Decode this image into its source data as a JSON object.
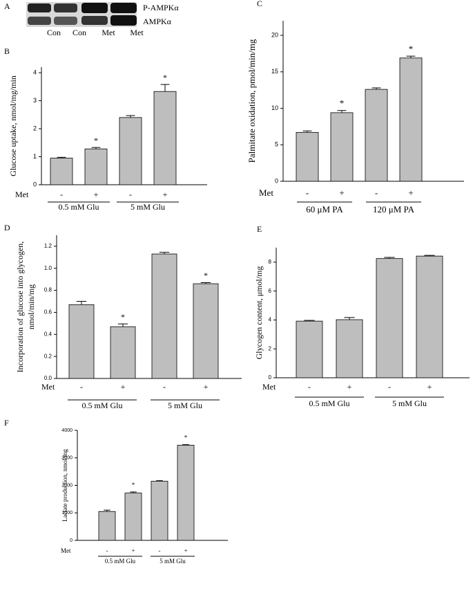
{
  "blot": {
    "panel": "A",
    "rows": [
      "P-AMPKα",
      "AMPKα"
    ],
    "lanes": [
      "Con",
      "Con",
      "Met",
      "Met"
    ]
  },
  "chart_data": [
    {
      "type": "bar",
      "panel": "B",
      "ylabel": "Glucose uptake, nmol/mg/min",
      "row_label": "Met",
      "categories": [
        "-",
        "+",
        "-",
        "+"
      ],
      "groups": [
        "0.5 mM Glu",
        "5 mM Glu"
      ],
      "values": [
        0.95,
        1.28,
        2.4,
        3.33
      ],
      "errors": [
        0.03,
        0.05,
        0.07,
        0.25
      ],
      "annotations": [
        {
          "at": 1,
          "text": "*"
        },
        {
          "at": 3,
          "text": "*"
        }
      ],
      "color": "#bebebe",
      "ylim": [
        0,
        4.2
      ],
      "yticks": [
        0,
        1,
        2,
        3,
        4
      ]
    },
    {
      "type": "bar",
      "panel": "C",
      "ylabel": "Palmitate oxidation, pmol/min/mg",
      "row_label": "Met",
      "categories": [
        "-",
        "+",
        "-",
        "+"
      ],
      "groups": [
        "60 μM PA",
        "120 μM PA"
      ],
      "values": [
        6.7,
        9.4,
        12.6,
        16.9
      ],
      "errors": [
        0.2,
        0.3,
        0.2,
        0.25
      ],
      "annotations": [
        {
          "at": 1,
          "text": "*"
        },
        {
          "at": 3,
          "text": "*"
        }
      ],
      "color": "#bebebe",
      "ylim": [
        0,
        22
      ],
      "yticks": [
        0,
        5,
        10,
        15,
        20
      ]
    },
    {
      "type": "bar",
      "panel": "D",
      "ylabel": [
        "Incorporation of glucose into glycogen,",
        "nmol/min/mg"
      ],
      "row_label": "Met",
      "categories": [
        "-",
        "+",
        "-",
        "+"
      ],
      "groups": [
        "0.5 mM Glu",
        "5 mM Glu"
      ],
      "values": [
        0.67,
        0.47,
        1.13,
        0.86
      ],
      "errors": [
        0.03,
        0.025,
        0.015,
        0.01
      ],
      "annotations": [
        {
          "at": 1,
          "text": "*"
        },
        {
          "at": 3,
          "text": "*"
        }
      ],
      "color": "#bebebe",
      "ylim": [
        0,
        1.3
      ],
      "yticks": [
        {
          "value": 0,
          "label": "0.0"
        },
        0.2,
        0.4,
        0.6,
        0.8,
        {
          "value": 1,
          "label": "1.0"
        },
        1.2
      ]
    },
    {
      "type": "bar",
      "panel": "E",
      "ylabel": "Glycogen content, μmol/mg",
      "row_label": "Met",
      "categories": [
        "-",
        "+",
        "-",
        "+"
      ],
      "groups": [
        "0.5 mM Glu",
        "5 mM Glu"
      ],
      "values": [
        3.92,
        4.02,
        8.25,
        8.42
      ],
      "errors": [
        0.05,
        0.15,
        0.08,
        0.05
      ],
      "annotations": [],
      "color": "#bebebe",
      "ylim": [
        0,
        9
      ],
      "yticks": [
        0,
        2,
        4,
        6,
        8
      ]
    },
    {
      "type": "bar",
      "panel": "F",
      "ylabel": "Lactate production, nmol/mg",
      "row_label": "Met",
      "categories": [
        "-",
        "+",
        "-",
        "+"
      ],
      "groups": [
        "0.5 mM Glu",
        "5 mM Glu"
      ],
      "values": [
        1050,
        1720,
        2150,
        3460
      ],
      "errors": [
        50,
        40,
        20,
        20
      ],
      "annotations": [
        {
          "at": 1,
          "text": "*"
        },
        {
          "at": 3,
          "text": "*"
        }
      ],
      "color": "#bebebe",
      "ylim": [
        0,
        4000
      ],
      "yticks": [
        0,
        1000,
        2000,
        3000,
        4000
      ]
    }
  ]
}
